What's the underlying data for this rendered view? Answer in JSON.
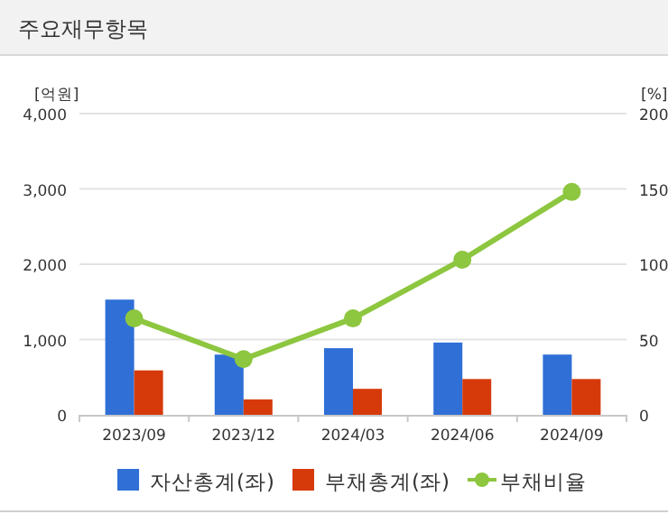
{
  "chart_data": {
    "type": "bar",
    "title": "주요재무항목",
    "ylabel": "[억원]",
    "y2label": "[%]",
    "categories": [
      "2023/09",
      "2023/12",
      "2024/03",
      "2024/06",
      "2024/09"
    ],
    "series": [
      {
        "name": "자산총계(좌)",
        "color": "#2f6fd6",
        "values": [
          1530,
          800,
          885,
          960,
          800
        ]
      },
      {
        "name": "부채총계(좌)",
        "color": "#d63a0b",
        "values": [
          590,
          205,
          345,
          475,
          475
        ]
      },
      {
        "name": "부채비율",
        "type": "line",
        "axis": "y2",
        "color": "#8dc63f",
        "marker": "circle",
        "values": [
          64,
          37,
          64,
          103,
          148
        ]
      }
    ],
    "ylim": [
      0,
      4000
    ],
    "yticks": [
      {
        "value": 0,
        "label": "0"
      },
      {
        "value": 1000,
        "label": "1,000"
      },
      {
        "value": 2000,
        "label": "2,000"
      },
      {
        "value": 3000,
        "label": "3,000"
      },
      {
        "value": 4000,
        "label": "4,000"
      }
    ],
    "y2lim": [
      0,
      200
    ],
    "y2ticks": [
      0,
      50,
      100,
      150,
      200
    ],
    "grid": "y",
    "legend": "bottom"
  }
}
